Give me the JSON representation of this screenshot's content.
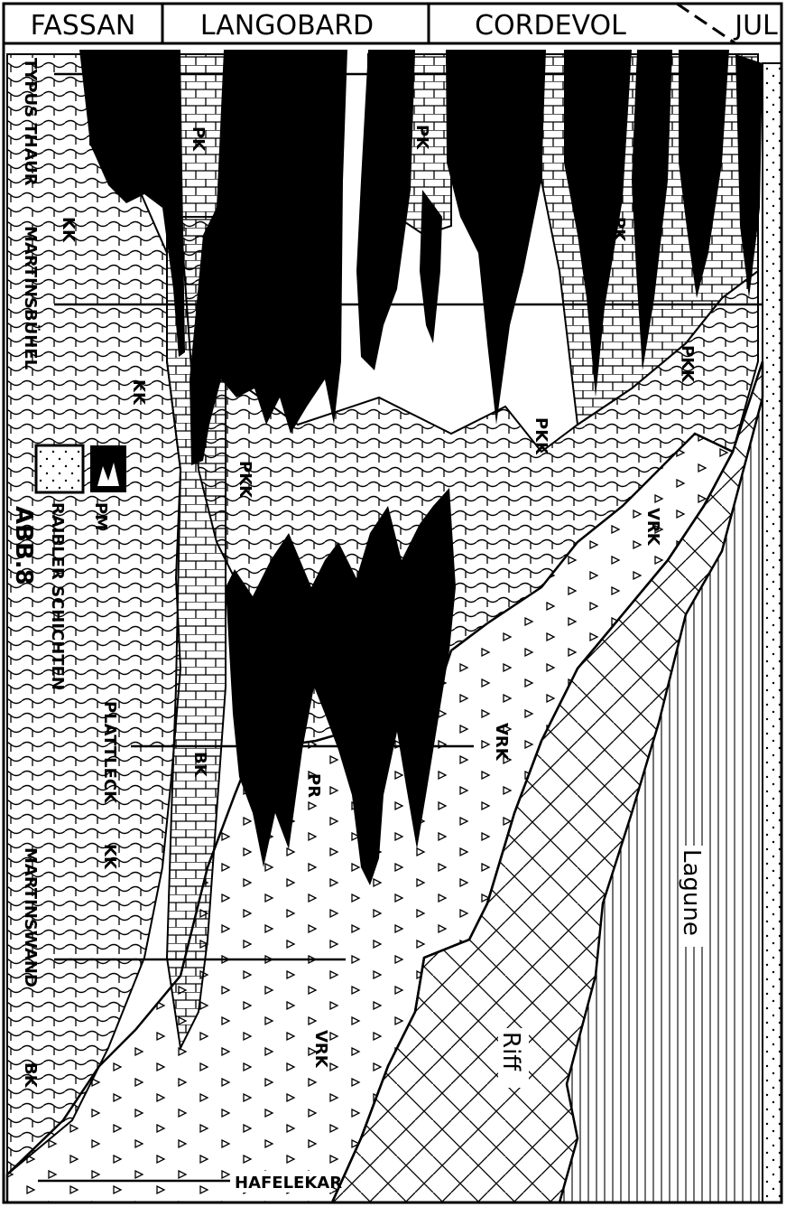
{
  "header": {
    "stages": [
      "FASSAN",
      "LANGOBARD",
      "CORDEVOL",
      "JUL"
    ]
  },
  "sections": {
    "left": [
      "TYPUS THAUR",
      "MARTINSBÜHEL",
      "PLATTLECK",
      "MARTINSWAND"
    ],
    "bottom": "HAFELEKAR"
  },
  "legend": {
    "figure_number": "ABB.8",
    "raibler": "RAIBLER SCHICHTEN",
    "pm": "PM"
  },
  "facies_labels": {
    "kk": "KK",
    "bk": "BK",
    "pk": "PK",
    "pkk": "PKK",
    "vrk": "VRK",
    "pr": "PR",
    "riff": "Riff",
    "lagune": "Lagune"
  },
  "colors": {
    "ink": "#000000",
    "paper": "#ffffff"
  }
}
